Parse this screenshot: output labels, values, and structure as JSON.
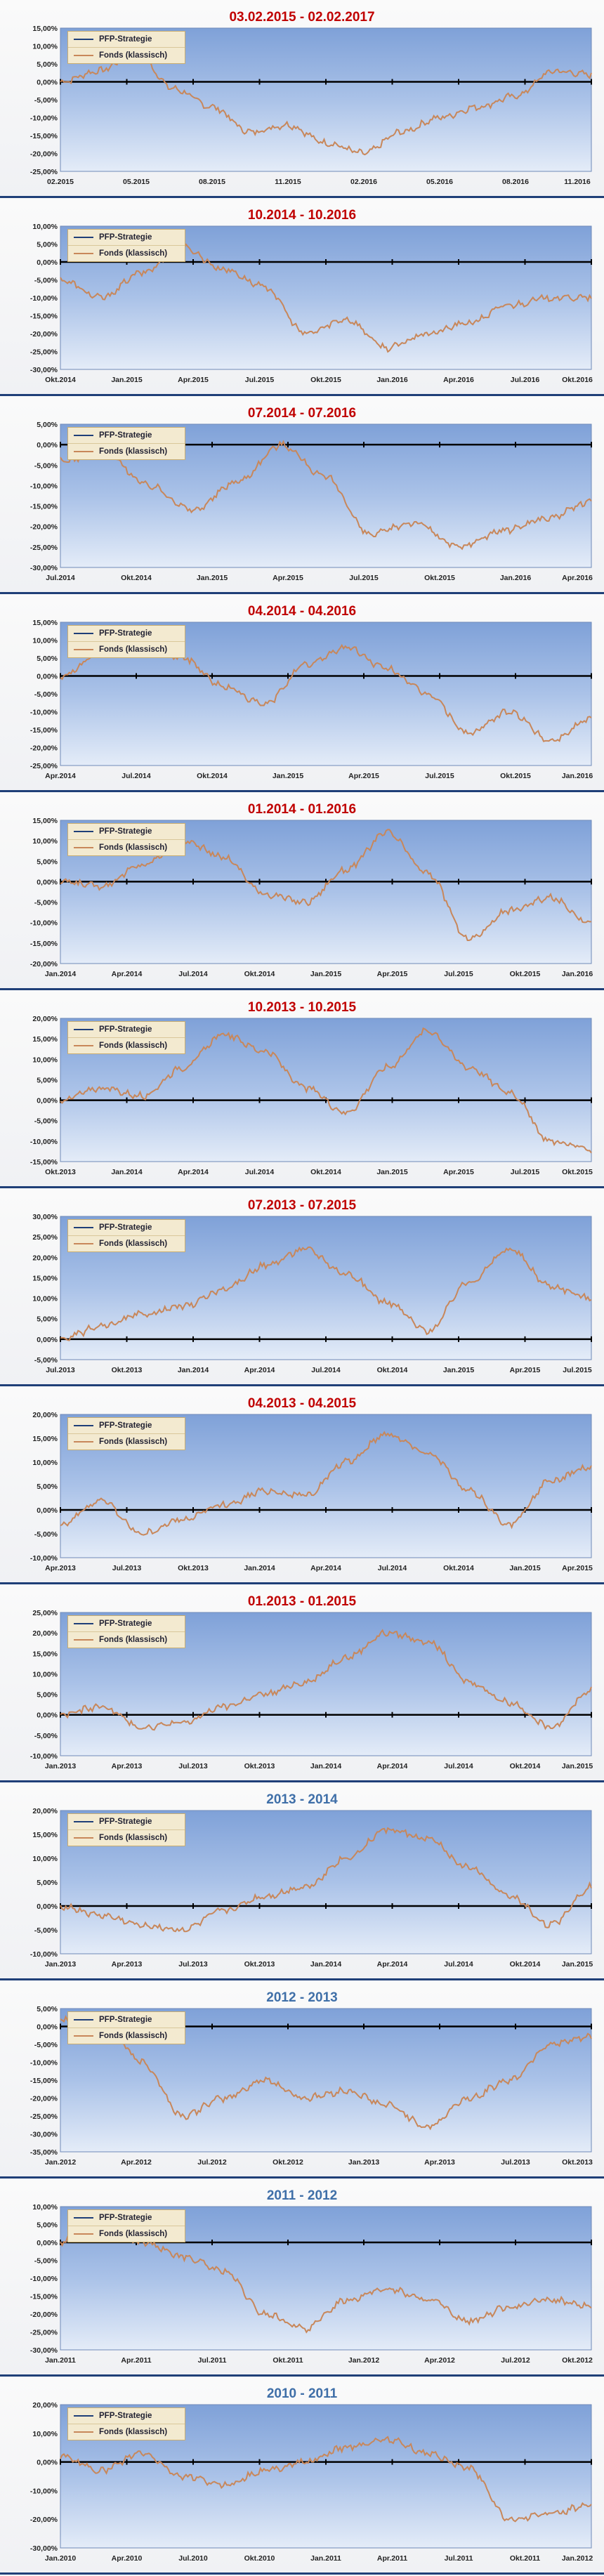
{
  "legend": {
    "pfp_label": "PFP-Strategie",
    "fonds_label": "Fonds (klassisch)"
  },
  "colors": {
    "title_red": "#c00000",
    "title_blue": "#3f6fa8",
    "fonds_line": "#c8875a",
    "pfp_line": "#1f3f78",
    "zero_line": "#000000",
    "plot_bg_top": "#7fa1d8",
    "plot_bg_bottom": "#e4ecf8"
  },
  "chart_data": [
    {
      "type": "line",
      "title": "03.02.2015 - 02.02.2017",
      "title_color": "red",
      "ylim": [
        -25,
        15
      ],
      "yticks": [
        "15,00%",
        "10,00%",
        "5,00%",
        "0,00%",
        "-5,00%",
        "-10,00%",
        "-15,00%",
        "-20,00%",
        "-25,00%"
      ],
      "xticks": [
        "02.2015",
        "05.2015",
        "08.2015",
        "11.2015",
        "02.2016",
        "05.2016",
        "08.2016",
        "11.2016"
      ],
      "series": [
        {
          "name": "PFP-Strategie",
          "values": [
            0,
            0,
            0,
            0,
            0,
            0,
            0,
            0,
            0
          ]
        },
        {
          "name": "Fonds (klassisch)",
          "values": [
            0,
            3,
            8,
            -2,
            -7,
            -14,
            -12,
            -17,
            -20,
            -14,
            -10,
            -7,
            -4,
            3,
            2
          ]
        }
      ]
    },
    {
      "type": "line",
      "title": "10.2014 - 10.2016",
      "title_color": "red",
      "ylim": [
        -30,
        10
      ],
      "yticks": [
        "10,00%",
        "5,00%",
        "0,00%",
        "-5,00%",
        "-10,00%",
        "-15,00%",
        "-20,00%",
        "-25,00%",
        "-30,00%"
      ],
      "xticks": [
        "Okt.2014",
        "Jan.2015",
        "Apr.2015",
        "Jul.2015",
        "Okt.2015",
        "Jan.2016",
        "Apr.2016",
        "Jul.2016",
        "Okt.2016"
      ],
      "series": [
        {
          "name": "PFP-Strategie",
          "values": [
            0,
            0,
            0,
            0,
            0,
            0,
            0,
            0,
            0
          ]
        },
        {
          "name": "Fonds (klassisch)",
          "values": [
            -5,
            -10,
            -3,
            4,
            -2,
            -7,
            -20,
            -16,
            -24,
            -20,
            -17,
            -12,
            -10,
            -10
          ]
        }
      ]
    },
    {
      "type": "line",
      "title": "07.2014 - 07.2016",
      "title_color": "red",
      "ylim": [
        -30,
        5
      ],
      "yticks": [
        "5,00%",
        "0,00%",
        "-5,00%",
        "-10,00%",
        "-15,00%",
        "-20,00%",
        "-25,00%",
        "-30,00%"
      ],
      "xticks": [
        "Jul.2014",
        "Okt.2014",
        "Jan.2015",
        "Apr.2015",
        "Jul.2015",
        "Okt.2015",
        "Jan.2016",
        "Apr.2016"
      ],
      "series": [
        {
          "name": "PFP-Strategie",
          "values": [
            0,
            0,
            0,
            0,
            0,
            0,
            0,
            0
          ]
        },
        {
          "name": "Fonds (klassisch)",
          "values": [
            -4,
            -2,
            -10,
            -16,
            -9,
            0,
            -8,
            -22,
            -19,
            -25,
            -21,
            -18,
            -14
          ]
        }
      ]
    },
    {
      "type": "line",
      "title": "04.2014 - 04.2016",
      "title_color": "red",
      "ylim": [
        -25,
        15
      ],
      "yticks": [
        "15,00%",
        "10,00%",
        "5,00%",
        "0,00%",
        "-5,00%",
        "-10,00%",
        "-15,00%",
        "-20,00%",
        "-25,00%"
      ],
      "xticks": [
        "Apr.2014",
        "Jul.2014",
        "Okt.2014",
        "Jan.2015",
        "Apr.2015",
        "Jul.2015",
        "Okt.2015",
        "Jan.2016"
      ],
      "series": [
        {
          "name": "PFP-Strategie",
          "values": [
            0,
            0,
            0,
            0,
            0,
            0,
            0,
            0
          ]
        },
        {
          "name": "Fonds (klassisch)",
          "values": [
            0,
            6,
            10,
            5,
            -3,
            -8,
            3,
            8,
            2,
            -5,
            -16,
            -10,
            -18,
            -12
          ]
        }
      ]
    },
    {
      "type": "line",
      "title": "01.2014 - 01.2016",
      "title_color": "red",
      "ylim": [
        -20,
        15
      ],
      "yticks": [
        "15,00%",
        "10,00%",
        "5,00%",
        "0,00%",
        "-5,00%",
        "-10,00%",
        "-15,00%",
        "-20,00%"
      ],
      "xticks": [
        "Jan.2014",
        "Apr.2014",
        "Jul.2014",
        "Okt.2014",
        "Jan.2015",
        "Apr.2015",
        "Jul.2015",
        "Okt.2015",
        "Jan.2016"
      ],
      "series": [
        {
          "name": "PFP-Strategie",
          "values": [
            0,
            0,
            0,
            0,
            0,
            0,
            0,
            0,
            0
          ]
        },
        {
          "name": "Fonds (klassisch)",
          "values": [
            0,
            -1,
            4,
            10,
            6,
            -3,
            -5,
            3,
            12,
            2,
            -14,
            -7,
            -4,
            -10
          ]
        }
      ]
    },
    {
      "type": "line",
      "title": "10.2013 - 10.2015",
      "title_color": "red",
      "ylim": [
        -15,
        20
      ],
      "yticks": [
        "20,00%",
        "15,00%",
        "10,00%",
        "5,00%",
        "0,00%",
        "-5,00%",
        "-10,00%",
        "-15,00%"
      ],
      "xticks": [
        "Okt.2013",
        "Jan.2014",
        "Apr.2014",
        "Jul.2014",
        "Okt.2014",
        "Jan.2015",
        "Apr.2015",
        "Jul.2015",
        "Okt.2015"
      ],
      "series": [
        {
          "name": "PFP-Strategie",
          "values": [
            0,
            0,
            0,
            0,
            0,
            0,
            0,
            0,
            0
          ]
        },
        {
          "name": "Fonds (klassisch)",
          "values": [
            0,
            3,
            1,
            8,
            16,
            12,
            3,
            -3,
            8,
            17,
            8,
            2,
            -10,
            -12
          ]
        }
      ]
    },
    {
      "type": "line",
      "title": "07.2013 - 07.2015",
      "title_color": "red",
      "ylim": [
        -5,
        30
      ],
      "yticks": [
        "30,00%",
        "25,00%",
        "20,00%",
        "15,00%",
        "10,00%",
        "5,00%",
        "0,00%",
        "-5,00%"
      ],
      "xticks": [
        "Jul.2013",
        "Okt.2013",
        "Jan.2014",
        "Apr.2014",
        "Jul.2014",
        "Okt.2014",
        "Jan.2015",
        "Apr.2015",
        "Jul.2015"
      ],
      "series": [
        {
          "name": "PFP-Strategie",
          "values": [
            0,
            0,
            0,
            0,
            0,
            0,
            0,
            0,
            0
          ]
        },
        {
          "name": "Fonds (klassisch)",
          "values": [
            0,
            3,
            6,
            8,
            12,
            18,
            22,
            16,
            9,
            2,
            14,
            22,
            13,
            10
          ]
        }
      ]
    },
    {
      "type": "line",
      "title": "04.2013 - 04.2015",
      "title_color": "red",
      "ylim": [
        -10,
        20
      ],
      "yticks": [
        "20,00%",
        "15,00%",
        "10,00%",
        "5,00%",
        "0,00%",
        "-5,00%",
        "-10,00%"
      ],
      "xticks": [
        "Apr.2013",
        "Jul.2013",
        "Okt.2013",
        "Jan.2014",
        "Apr.2014",
        "Jul.2014",
        "Okt.2014",
        "Jan.2015",
        "Apr.2015"
      ],
      "series": [
        {
          "name": "PFP-Strategie",
          "values": [
            0,
            0,
            0,
            0,
            0,
            0,
            0,
            0,
            0
          ]
        },
        {
          "name": "Fonds (klassisch)",
          "values": [
            -3,
            2,
            -5,
            -2,
            1,
            4,
            3,
            10,
            16,
            12,
            4,
            -3,
            6,
            9
          ]
        }
      ]
    },
    {
      "type": "line",
      "title": "01.2013 - 01.2015",
      "title_color": "red",
      "ylim": [
        -10,
        25
      ],
      "yticks": [
        "25,00%",
        "20,00%",
        "15,00%",
        "10,00%",
        "5,00%",
        "0,00%",
        "-5,00%",
        "-10,00%"
      ],
      "xticks": [
        "Jan.2013",
        "Apr.2013",
        "Jul.2013",
        "Okt.2013",
        "Jan.2014",
        "Apr.2014",
        "Jul.2014",
        "Okt.2014",
        "Jan.2015"
      ],
      "series": [
        {
          "name": "PFP-Strategie",
          "values": [
            0,
            0,
            0,
            0,
            0,
            0,
            0,
            0,
            0
          ]
        },
        {
          "name": "Fonds (klassisch)",
          "values": [
            0,
            2,
            -3,
            -2,
            2,
            5,
            8,
            14,
            20,
            18,
            8,
            3,
            -3,
            6
          ]
        }
      ]
    },
    {
      "type": "line",
      "title": "2013 - 2014",
      "title_color": "blue",
      "ylim": [
        -10,
        20
      ],
      "yticks": [
        "20,00%",
        "15,00%",
        "10,00%",
        "5,00%",
        "0,00%",
        "-5,00%",
        "-10,00%"
      ],
      "xticks": [
        "Jan.2013",
        "Apr.2013",
        "Jul.2013",
        "Okt.2013",
        "Jan.2014",
        "Apr.2014",
        "Jul.2014",
        "Okt.2014",
        "Jan.2015"
      ],
      "series": [
        {
          "name": "PFP-Strategie",
          "values": [
            0,
            0,
            0,
            0,
            0,
            0,
            0,
            0,
            0
          ]
        },
        {
          "name": "Fonds (klassisch)",
          "values": [
            0,
            -2,
            -4,
            -5,
            -1,
            2,
            4,
            10,
            16,
            14,
            8,
            2,
            -4,
            4
          ]
        }
      ]
    },
    {
      "type": "line",
      "title": "2012 - 2013",
      "title_color": "blue",
      "ylim": [
        -35,
        5
      ],
      "yticks": [
        "5,00%",
        "0,00%",
        "-5,00%",
        "-10,00%",
        "-15,00%",
        "-20,00%",
        "-25,00%",
        "-30,00%",
        "-35,00%"
      ],
      "xticks": [
        "Jan.2012",
        "Apr.2012",
        "Jul.2012",
        "Okt.2012",
        "Jan.2013",
        "Apr.2013",
        "Jul.2013",
        "Okt.2013"
      ],
      "series": [
        {
          "name": "PFP-Strategie",
          "values": [
            0,
            0,
            0,
            0,
            0,
            0,
            0,
            0
          ]
        },
        {
          "name": "Fonds (klassisch)",
          "values": [
            2,
            3,
            -10,
            -25,
            -20,
            -15,
            -20,
            -18,
            -22,
            -28,
            -20,
            -15,
            -5,
            -3
          ]
        }
      ]
    },
    {
      "type": "line",
      "title": "2011 - 2012",
      "title_color": "blue",
      "ylim": [
        -30,
        10
      ],
      "yticks": [
        "10,00%",
        "5,00%",
        "0,00%",
        "-5,00%",
        "-10,00%",
        "-15,00%",
        "-20,00%",
        "-25,00%",
        "-30,00%"
      ],
      "xticks": [
        "Jan.2011",
        "Apr.2011",
        "Jul.2011",
        "Okt.2011",
        "Jan.2012",
        "Apr.2012",
        "Jul.2012",
        "Okt.2012"
      ],
      "series": [
        {
          "name": "PFP-Strategie",
          "values": [
            0,
            0,
            0,
            0,
            0,
            0,
            0,
            0
          ]
        },
        {
          "name": "Fonds (klassisch)",
          "values": [
            0,
            5,
            0,
            -4,
            -8,
            -20,
            -24,
            -16,
            -13,
            -16,
            -22,
            -18,
            -16,
            -18
          ]
        }
      ]
    },
    {
      "type": "line",
      "title": "2010 - 2011",
      "title_color": "blue",
      "ylim": [
        -30,
        20
      ],
      "yticks": [
        "20,00%",
        "10,00%",
        "0,00%",
        "-10,00%",
        "-20,00%",
        "-30,00%"
      ],
      "xticks": [
        "Jan.2010",
        "Apr.2010",
        "Jul.2010",
        "Okt.2010",
        "Jan.2011",
        "Apr.2011",
        "Jul.2011",
        "Okt.2011",
        "Jan.2012"
      ],
      "series": [
        {
          "name": "PFP-Strategie",
          "values": [
            0,
            0,
            0,
            0,
            0,
            0,
            0,
            0,
            0
          ]
        },
        {
          "name": "Fonds (klassisch)",
          "values": [
            2,
            -3,
            3,
            -5,
            -8,
            -3,
            0,
            5,
            8,
            3,
            -2,
            -20,
            -18,
            -15
          ]
        }
      ]
    }
  ]
}
